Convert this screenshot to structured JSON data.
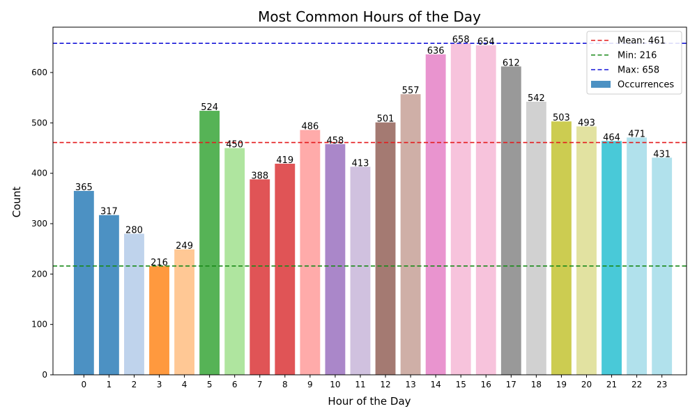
{
  "chart_data": {
    "type": "bar",
    "title": "Most Common Hours of the Day",
    "xlabel": "Hour of the Day",
    "ylabel": "Count",
    "categories": [
      "0",
      "1",
      "2",
      "3",
      "4",
      "5",
      "6",
      "7",
      "8",
      "9",
      "10",
      "11",
      "12",
      "13",
      "14",
      "15",
      "16",
      "17",
      "18",
      "19",
      "20",
      "21",
      "22",
      "23"
    ],
    "series": [
      {
        "name": "Occurrences",
        "values": [
          365,
          317,
          280,
          216,
          249,
          524,
          450,
          388,
          419,
          486,
          458,
          413,
          501,
          557,
          636,
          658,
          654,
          612,
          542,
          503,
          493,
          464,
          471,
          431
        ],
        "legend_color": "#4c91c3"
      }
    ],
    "bar_colors": [
      "#4c91c3",
      "#4c91c3",
      "#bfd3ec",
      "#ff993e",
      "#ffc895",
      "#56b356",
      "#afe59f",
      "#e05456",
      "#e05456",
      "#ffabaa",
      "#aa87c9",
      "#d0c1df",
      "#a47a72",
      "#cfafa7",
      "#e994cf",
      "#f7c3dc",
      "#f7c3dc",
      "#999999",
      "#d1d1d1",
      "#cccc51",
      "#e2e2a1",
      "#49c9d8",
      "#b1e1ec",
      "#b1e1ec"
    ],
    "reference_lines": [
      {
        "label": "Mean: 461",
        "value": 461,
        "color": "#e31a1c"
      },
      {
        "label": "Min: 216",
        "value": 216,
        "color": "#1a8a1a"
      },
      {
        "label": "Max: 658",
        "value": 658,
        "color": "#1515d8"
      }
    ],
    "ylim": [
      0,
      690
    ],
    "yticks": [
      0,
      100,
      200,
      300,
      400,
      500,
      600
    ],
    "grid": false,
    "legend_position": "top-right"
  }
}
